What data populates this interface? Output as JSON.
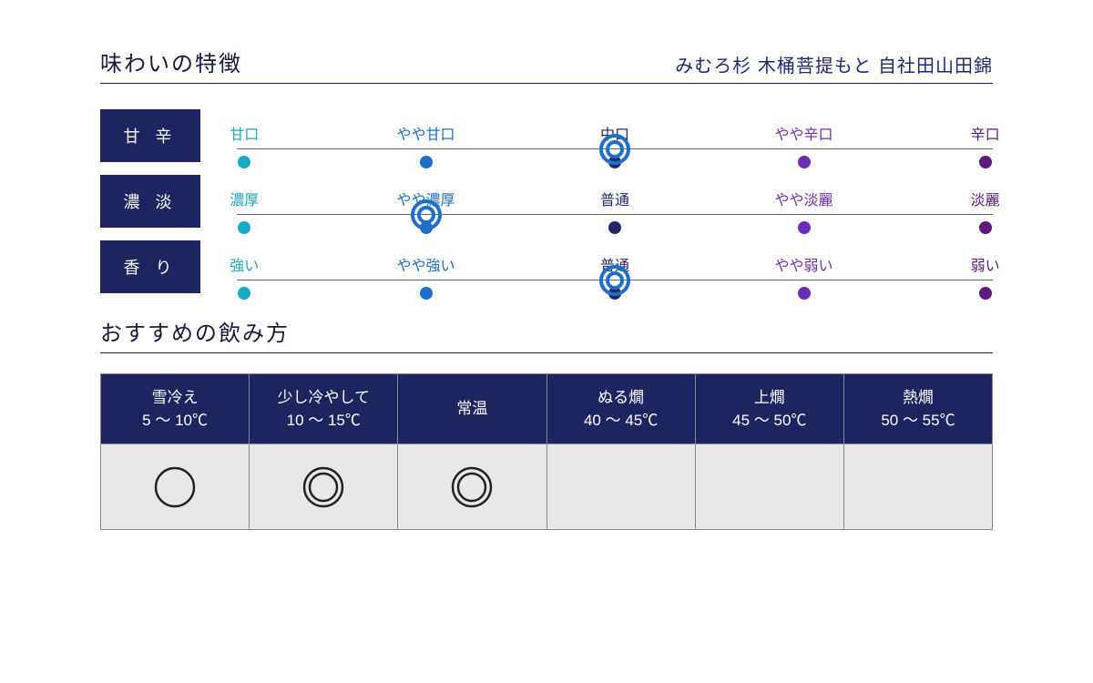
{
  "header": {
    "section_title": "味わいの特徴",
    "product_name": "みむろ杉 木桶菩提もと 自社田山田錦"
  },
  "colors": {
    "box_bg": "#1d2460",
    "line": "#666666",
    "ring": "#1e6fc7",
    "body_bg": "#e8e8e8",
    "point_colors": [
      "#1aa8c4",
      "#1e6fc7",
      "#212a66",
      "#6a2fb5",
      "#5d1a7a"
    ]
  },
  "scales": [
    {
      "name": "sweetness",
      "label": "甘 辛",
      "selected_index": 2,
      "points": [
        "甘口",
        "やや甘口",
        "中口",
        "やや辛口",
        "辛口"
      ]
    },
    {
      "name": "body",
      "label": "濃 淡",
      "selected_index": 1,
      "points": [
        "濃厚",
        "やや濃厚",
        "普通",
        "やや淡麗",
        "淡麗"
      ]
    },
    {
      "name": "aroma",
      "label": "香 り",
      "selected_index": 2,
      "points": [
        "強い",
        "やや強い",
        "普通",
        "やや弱い",
        "弱い"
      ]
    }
  ],
  "serving_section_title": "おすすめの飲み方",
  "serving": [
    {
      "name": "雪冷え",
      "temp": "5 〜 10℃",
      "mark": "single"
    },
    {
      "name": "少し冷やして",
      "temp": "10 〜 15℃",
      "mark": "double"
    },
    {
      "name": "常温",
      "temp": "",
      "mark": "double"
    },
    {
      "name": "ぬる燗",
      "temp": "40 〜 45℃",
      "mark": "none"
    },
    {
      "name": "上燗",
      "temp": "45 〜 50℃",
      "mark": "none"
    },
    {
      "name": "熱燗",
      "temp": "50 〜 55℃",
      "mark": "none"
    }
  ],
  "layout": {
    "positions_pct": [
      1,
      25,
      50,
      75,
      99
    ],
    "ring_outer": 36,
    "ring_stroke": 4,
    "dot_size": 14
  }
}
